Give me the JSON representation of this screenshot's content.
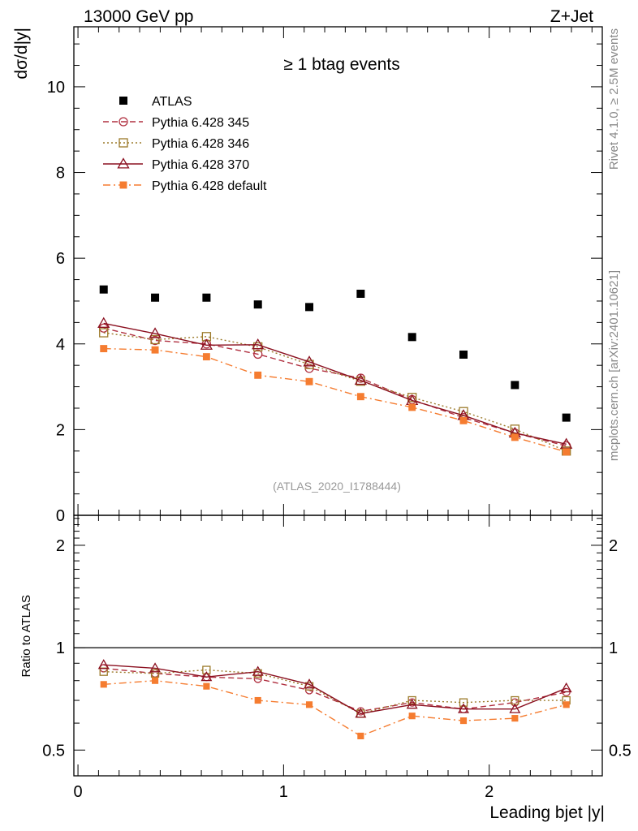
{
  "header": {
    "left_label": "13000 GeV pp",
    "right_label": "Z+Jet"
  },
  "side_labels": {
    "rivet": "Rivet 4.1.0, ≥ 2.5M events",
    "mcplots": "mcplots.cern.ch [arXiv:2401.10621]"
  },
  "chart_data": [
    {
      "type": "scatter",
      "panel": "main",
      "title": "≥ 1 btag events",
      "ylabel": "dσ/d|y|",
      "xlabel": "Leading bjet |y|",
      "xlim": [
        -0.02,
        2.55
      ],
      "ylim": [
        0,
        11.4
      ],
      "analysis_tag": "(ATLAS_2020_I1788444)",
      "legend_position": "top-left",
      "y_tick_labels": [
        "0",
        "2",
        "4",
        "6",
        "8",
        "10"
      ],
      "x": [
        0.125,
        0.375,
        0.625,
        0.875,
        1.125,
        1.375,
        1.625,
        1.875,
        2.125,
        2.375
      ],
      "series": [
        {
          "name": "ATLAS",
          "color": "#000000",
          "values": [
            5.27,
            5.08,
            5.08,
            4.92,
            4.86,
            5.17,
            4.16,
            3.75,
            3.04,
            2.28
          ]
        },
        {
          "name": "Pythia 6.428 345",
          "color": "#b03040",
          "values": [
            4.37,
            4.08,
            4.0,
            3.76,
            3.43,
            3.2,
            2.7,
            2.28,
            1.92,
            1.62
          ]
        },
        {
          "name": "Pythia 6.428 346",
          "color": "#9c7a2a",
          "values": [
            4.26,
            4.1,
            4.17,
            3.93,
            3.52,
            3.13,
            2.75,
            2.42,
            2.01,
            1.5
          ]
        },
        {
          "name": "Pythia 6.428 370",
          "color": "#8b1020",
          "values": [
            4.48,
            4.24,
            3.97,
            3.98,
            3.58,
            3.15,
            2.68,
            2.33,
            1.92,
            1.66
          ]
        },
        {
          "name": "Pythia 6.428 default",
          "color": "#f57c30",
          "values": [
            3.89,
            3.86,
            3.7,
            3.27,
            3.12,
            2.77,
            2.52,
            2.21,
            1.82,
            1.48
          ]
        }
      ]
    },
    {
      "type": "line",
      "panel": "ratio",
      "ylabel": "Ratio to ATLAS",
      "xlabel": "Leading bjet |y|",
      "xlim": [
        -0.02,
        2.55
      ],
      "ylim": [
        0.42,
        2.45
      ],
      "y_scale": "log",
      "y_tick_labels": [
        "0.5",
        "1",
        "2"
      ],
      "x_tick_labels": [
        "0",
        "1",
        "2"
      ],
      "x": [
        0.125,
        0.375,
        0.625,
        0.875,
        1.125,
        1.375,
        1.625,
        1.875,
        2.125,
        2.375
      ],
      "series": [
        {
          "name": "Pythia 6.428 345",
          "values": [
            0.87,
            0.84,
            0.82,
            0.81,
            0.75,
            0.65,
            0.69,
            0.66,
            0.69,
            0.74
          ]
        },
        {
          "name": "Pythia 6.428 346",
          "values": [
            0.85,
            0.84,
            0.86,
            0.84,
            0.77,
            0.64,
            0.7,
            0.69,
            0.7,
            0.7
          ]
        },
        {
          "name": "Pythia 6.428 370",
          "values": [
            0.89,
            0.87,
            0.82,
            0.85,
            0.78,
            0.64,
            0.68,
            0.66,
            0.66,
            0.76
          ]
        },
        {
          "name": "Pythia 6.428 default",
          "values": [
            0.78,
            0.8,
            0.77,
            0.7,
            0.68,
            0.55,
            0.63,
            0.61,
            0.62,
            0.68
          ]
        }
      ]
    }
  ]
}
